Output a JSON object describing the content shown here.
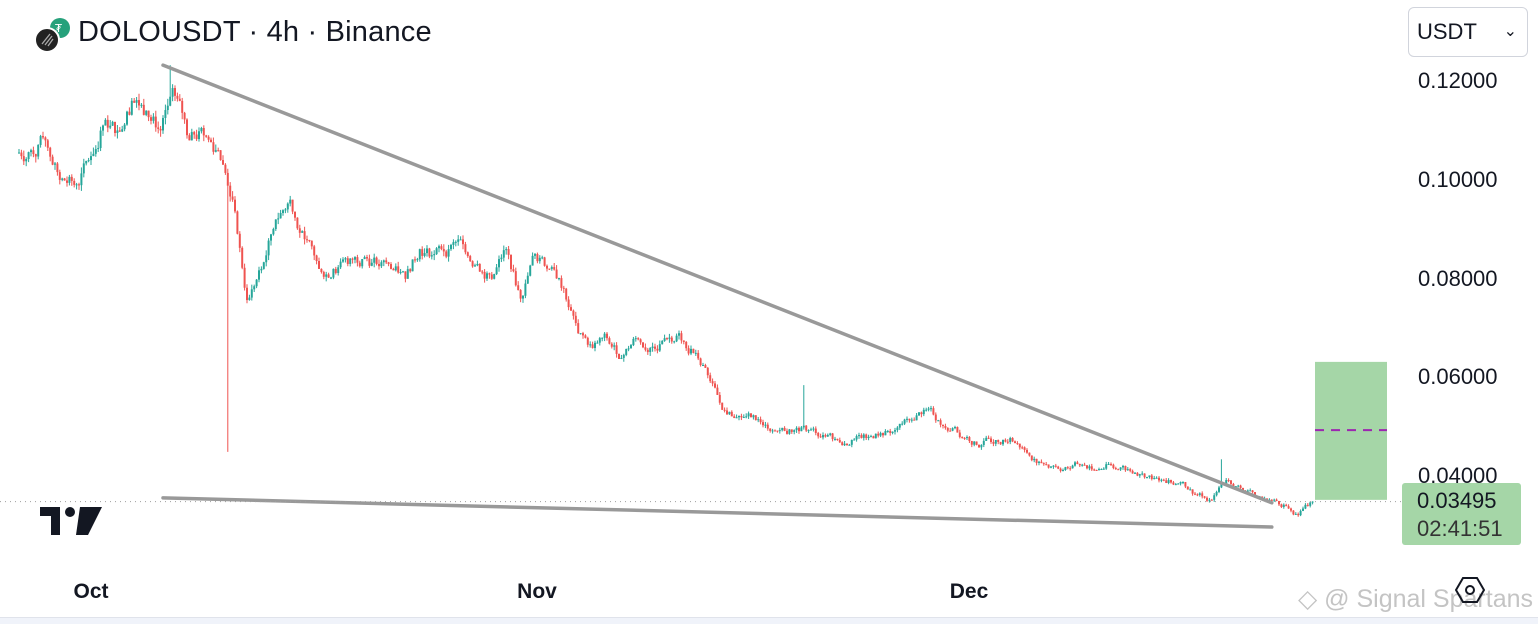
{
  "header": {
    "title": "DOLOUSDT · 4h · Binance"
  },
  "currency_select": {
    "value": "USDT"
  },
  "price_axis": {
    "ticks": [
      "0.12000",
      "0.10000",
      "0.08000",
      "0.06000",
      "0.04000"
    ],
    "tick_values": [
      0.12,
      0.1,
      0.08,
      0.06,
      0.04
    ]
  },
  "time_axis": {
    "labels": [
      {
        "text": "Oct",
        "date": "2025-10-01"
      },
      {
        "text": "Nov",
        "date": "2025-11-01"
      },
      {
        "text": "Dec",
        "date": "2025-12-01"
      }
    ]
  },
  "last_price": {
    "price": "0.03495",
    "countdown": "02:41:51",
    "color": "#a5d6a7"
  },
  "watermark": "@ Signal Spartans",
  "colors": {
    "up": "#26a69a",
    "down": "#ef5350",
    "trendline": "#999999",
    "target_box": "#a5d6a7",
    "target_line": "#9c27b0"
  },
  "chart_data": {
    "type": "candlestick",
    "symbol": "DOLOUSDT",
    "interval": "4h",
    "exchange": "Binance",
    "start_date": "2025-09-26",
    "daily_closes": [
      0.106,
      0.108,
      0.1,
      0.099,
      0.104,
      0.111,
      0.11,
      0.116,
      0.114,
      0.11,
      0.117,
      0.108,
      0.109,
      0.106,
      0.096,
      0.0757,
      0.082,
      0.092,
      0.096,
      0.088,
      0.082,
      0.082,
      0.083,
      0.084,
      0.083,
      0.082,
      0.08,
      0.086,
      0.085,
      0.086,
      0.087,
      0.083,
      0.08,
      0.086,
      0.076,
      0.085,
      0.082,
      0.078,
      0.069,
      0.066,
      0.068,
      0.064,
      0.068,
      0.066,
      0.068,
      0.069,
      0.065,
      0.0605,
      0.0535,
      0.052,
      0.052,
      0.0505,
      0.0494,
      0.0494,
      0.0494,
      0.0484,
      0.0474,
      0.0474,
      0.0478,
      0.0488,
      0.0494,
      0.0514,
      0.0535,
      0.0514,
      0.0498,
      0.048,
      0.0464,
      0.0474,
      0.0478,
      0.0454,
      0.043,
      0.0422,
      0.0417,
      0.0424,
      0.0413,
      0.0424,
      0.0413,
      0.0405,
      0.0397,
      0.0393,
      0.0389,
      0.0363,
      0.0353,
      0.0393,
      0.0377,
      0.0359,
      0.0353,
      0.0343,
      0.0322,
      0.03495
    ],
    "notable_extremes": [
      {
        "date": "2025-10-06",
        "high": 0.1232
      },
      {
        "date": "2025-10-10",
        "low": 0.045
      },
      {
        "date": "2025-11-19",
        "high": 0.0585
      },
      {
        "date": "2025-12-18",
        "high": 0.0435
      }
    ],
    "trendlines": [
      {
        "from": {
          "date": "2025-10-06",
          "price": 0.1232
        },
        "to": {
          "date": "2025-12-22",
          "price": 0.0347
        }
      },
      {
        "from": {
          "date": "2025-10-06",
          "price": 0.0357
        },
        "to": {
          "date": "2025-12-22",
          "price": 0.0298
        }
      }
    ],
    "target_box": {
      "from_date": "2025-12-25",
      "to_date": "2025-12-30",
      "low": 0.0353,
      "high": 0.0632,
      "midline": 0.0494
    },
    "ylim": [
      0.0234,
      0.1354
    ],
    "grid": false
  }
}
